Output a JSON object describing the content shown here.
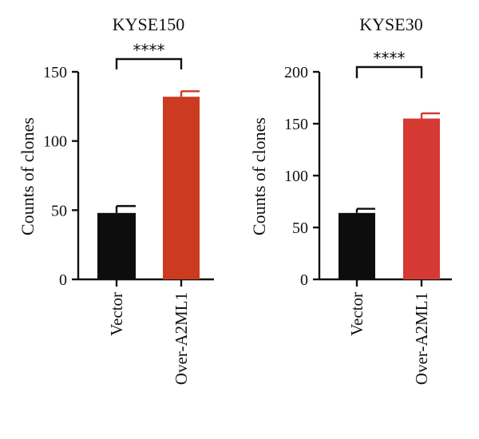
{
  "chart_data": [
    {
      "type": "bar",
      "title": "KYSE150",
      "ylabel": "Counts of clones",
      "categories": [
        "Vector",
        "Over-A2ML1"
      ],
      "values": [
        48,
        132
      ],
      "errors": [
        5,
        4
      ],
      "colors": [
        "#0d0d0d",
        "#cc3a1f"
      ],
      "ylim": [
        0,
        150
      ],
      "yticks": [
        "0",
        "50",
        "100",
        "150"
      ],
      "significance": "****"
    },
    {
      "type": "bar",
      "title": "KYSE30",
      "ylabel": "Counts of clones",
      "categories": [
        "Vector",
        "Over-A2ML1"
      ],
      "values": [
        64,
        155
      ],
      "errors": [
        4,
        5
      ],
      "colors": [
        "#0d0d0d",
        "#d43a33"
      ],
      "ylim": [
        0,
        200
      ],
      "yticks": [
        "0",
        "50",
        "100",
        "150",
        "200"
      ],
      "significance": "****"
    }
  ]
}
